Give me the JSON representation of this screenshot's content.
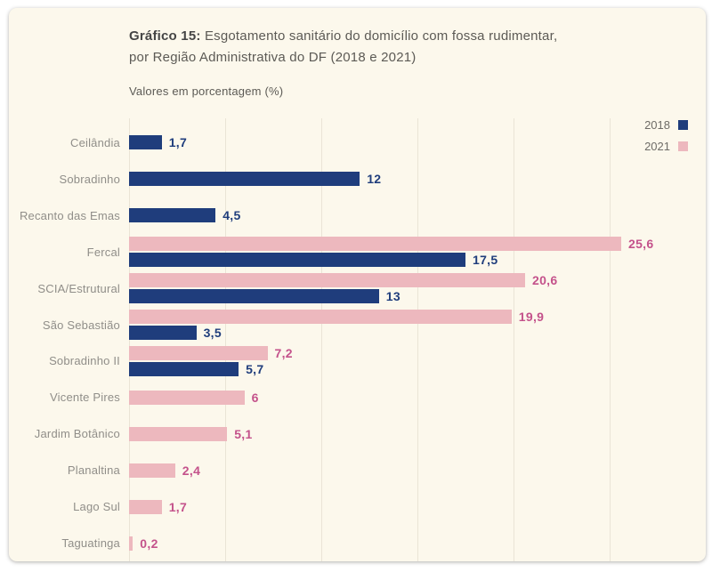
{
  "header": {
    "title_bold": "Gráfico 15:",
    "title_line1": "Esgotamento sanitário do domicílio com fossa rudimentar,",
    "title_line2": "por Região Administrativa do DF (2018 e 2021)",
    "subtitle": "Valores em porcentagem (%)"
  },
  "legend": {
    "items": [
      {
        "label": "2018",
        "color": "#1f3d7c"
      },
      {
        "label": "2021",
        "color": "#edb8be"
      }
    ]
  },
  "colors": {
    "card_background": "#fcf8ec",
    "gridline": "#eae4d6",
    "bar_2018": "#1f3d7c",
    "bar_2021": "#edb8be",
    "value_label_2018": "#1f3d7c",
    "value_label_2021": "#c4528b",
    "category_label": "#908e89"
  },
  "chart_data": {
    "type": "bar",
    "orientation": "horizontal",
    "title": "Gráfico 15: Esgotamento sanitário do domicílio com fossa rudimentar, por Região Administrativa do DF (2018 e 2021)",
    "subtitle": "Valores em porcentagem (%)",
    "unit": "%",
    "xlim": [
      0,
      30
    ],
    "gridline_step": 5,
    "grid": true,
    "legend_position": "top-right",
    "categories": [
      "Ceilândia",
      "Sobradinho",
      "Recanto das Emas",
      "Fercal",
      "SCIA/Estrutural",
      "São Sebastião",
      "Sobradinho II",
      "Vicente Pires",
      "Jardim Botânico",
      "Planaltina",
      "Lago Sul",
      "Taguatinga"
    ],
    "series": [
      {
        "name": "2018",
        "color": "#1f3d7c",
        "label_color": "#1f3d7c",
        "values": [
          1.7,
          12,
          4.5,
          17.5,
          13,
          3.5,
          5.7,
          null,
          null,
          null,
          null,
          null
        ],
        "display": [
          "1,7",
          "12",
          "4,5",
          "17,5",
          "13",
          "3,5",
          "5,7",
          null,
          null,
          null,
          null,
          null
        ]
      },
      {
        "name": "2021",
        "color": "#edb8be",
        "label_color": "#c4528b",
        "values": [
          null,
          null,
          null,
          25.6,
          20.6,
          19.9,
          7.2,
          6,
          5.1,
          2.4,
          1.7,
          0.2
        ],
        "display": [
          null,
          null,
          null,
          "25,6",
          "20,6",
          "19,9",
          "7,2",
          "6",
          "5,1",
          "2,4",
          "1,7",
          "0,2"
        ]
      }
    ]
  }
}
